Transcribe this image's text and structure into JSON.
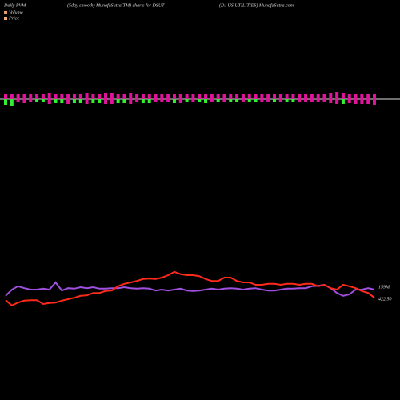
{
  "chart_data": {
    "type": "pvm",
    "titles": [
      "Daily PVM",
      "(5day smooth) MunafaSutra(TM) charts for DSUT",
      "(DJ US UTILITIES) MunafaSutra.com"
    ],
    "bars": {
      "up_color": "#e0149a",
      "up": [
        7,
        7,
        6,
        6,
        7,
        7,
        6,
        8,
        7,
        7,
        7,
        7,
        7,
        8,
        7,
        7,
        8,
        8,
        7,
        7,
        8,
        7,
        7,
        7,
        7,
        7,
        6,
        7,
        7,
        7,
        6,
        7,
        7,
        7,
        7,
        7,
        7,
        7,
        6,
        7,
        7,
        7,
        7,
        7,
        7,
        7,
        6,
        7,
        7,
        7,
        7,
        7,
        8,
        9,
        8,
        7,
        7,
        7,
        7,
        7
      ],
      "down": [
        7,
        8,
        4,
        5,
        4,
        4,
        3,
        6,
        5,
        5,
        6,
        5,
        5,
        6,
        5,
        5,
        6,
        6,
        5,
        5,
        6,
        4,
        5,
        5,
        4,
        4,
        3,
        5,
        5,
        4,
        3,
        4,
        5,
        4,
        4,
        3,
        3,
        4,
        3,
        3,
        3,
        4,
        3,
        3,
        4,
        3,
        4,
        4,
        3,
        3,
        4,
        4,
        5,
        6,
        6,
        5,
        6,
        6,
        6,
        7
      ],
      "down_colors": [
        "#33ee33",
        "#33ee33",
        "#e0149a",
        "#e0149a",
        "#e0149a",
        "#33ee33",
        "#33ee33",
        "#e0149a",
        "#33ee33",
        "#33ee33",
        "#e0149a",
        "#33ee33",
        "#33ee33",
        "#e0149a",
        "#33ee33",
        "#33ee33",
        "#e0149a",
        "#e0149a",
        "#33ee33",
        "#33ee33",
        "#e0149a",
        "#e0149a",
        "#33ee33",
        "#33ee33",
        "#e0149a",
        "#e0149a",
        "#e0149a",
        "#33ee33",
        "#e0149a",
        "#33ee33",
        "#e0149a",
        "#33ee33",
        "#33ee33",
        "#e0149a",
        "#33ee33",
        "#e0149a",
        "#33ee33",
        "#33ee33",
        "#e0149a",
        "#33ee33",
        "#33ee33",
        "#e0149a",
        "#e0149a",
        "#33ee33",
        "#e0149a",
        "#33ee33",
        "#33ee33",
        "#e0149a",
        "#e0149a",
        "#e0149a",
        "#e0149a",
        "#e0149a",
        "#e0149a",
        "#e0149a",
        "#33ee33",
        "#e0149a",
        "#e0149a",
        "#e0149a",
        "#e0149a",
        "#e0149a"
      ]
    },
    "ylim": [
      0,
      100
    ],
    "series": [
      {
        "name": "Volume",
        "color": "#a050e0",
        "legend_color": "#e89a6a",
        "end_label": "159M",
        "values": [
          42,
          55,
          62,
          58,
          55,
          55,
          57,
          55,
          70,
          53,
          58,
          57,
          60,
          58,
          60,
          57,
          57,
          58,
          58,
          60,
          58,
          57,
          58,
          57,
          53,
          55,
          53,
          55,
          57,
          53,
          52,
          53,
          55,
          57,
          55,
          57,
          58,
          57,
          55,
          57,
          58,
          55,
          53,
          53,
          55,
          57,
          57,
          58,
          58,
          62,
          63,
          65,
          58,
          48,
          42,
          45,
          55,
          55,
          58,
          55
        ]
      },
      {
        "name": "Price",
        "color": "#ff2a1a",
        "legend_color": "#f0a878",
        "end_label": "422.50",
        "values": [
          33,
          22,
          28,
          32,
          33,
          33,
          25,
          27,
          28,
          32,
          35,
          38,
          42,
          43,
          48,
          48,
          52,
          53,
          62,
          67,
          70,
          73,
          77,
          78,
          77,
          80,
          85,
          92,
          87,
          85,
          85,
          83,
          77,
          73,
          73,
          80,
          80,
          73,
          70,
          70,
          65,
          65,
          67,
          67,
          65,
          67,
          67,
          65,
          67,
          67,
          62,
          65,
          58,
          55,
          65,
          62,
          58,
          52,
          48,
          38
        ]
      }
    ]
  }
}
